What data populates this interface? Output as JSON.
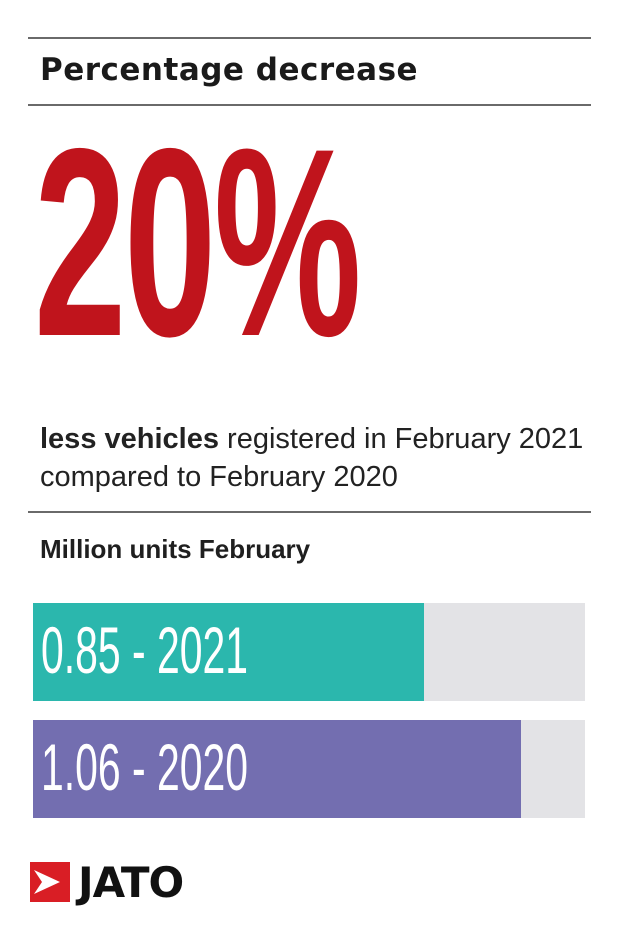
{
  "header": {
    "title": "Percentage decrease"
  },
  "highlight": {
    "value": "20%",
    "text_bold": "less vehicles",
    "text_rest": " registered in February 2021 compared to February 2020"
  },
  "colors": {
    "accent": "#c0141c",
    "bar_2021": "#2bb7ad",
    "bar_2020": "#736eb0",
    "track": "#e3e3e6",
    "logo_red": "#d91e25"
  },
  "chart_data": {
    "type": "bar",
    "orientation": "horizontal",
    "title": "Million units February",
    "categories": [
      "2021",
      "2020"
    ],
    "values": [
      0.85,
      1.06
    ],
    "labels": [
      "0.85 - 2021",
      "1.06 - 2020"
    ],
    "xlim": [
      0,
      1.2
    ]
  },
  "brand": {
    "logo_text": "JATO",
    "logo_icon": "jato-arrow-icon"
  }
}
